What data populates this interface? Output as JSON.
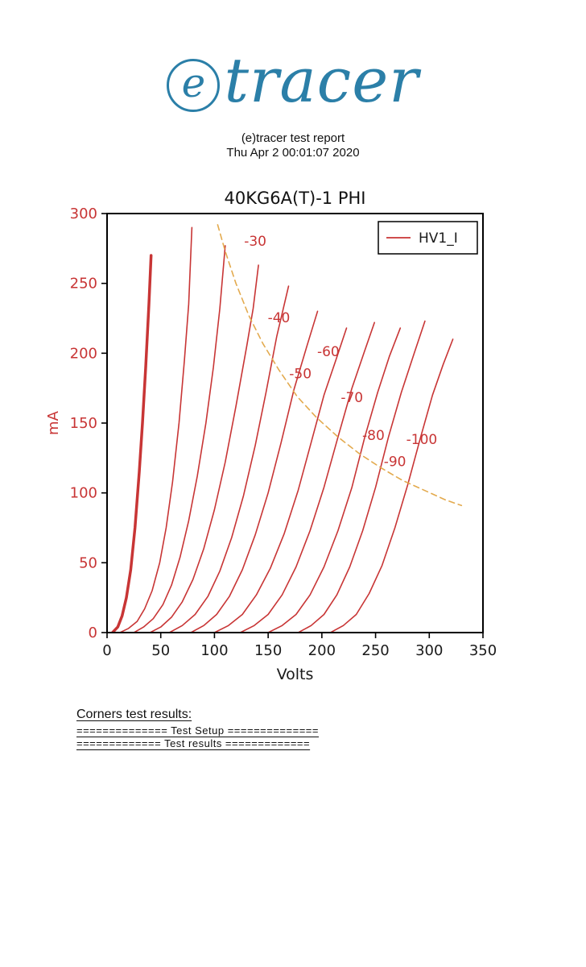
{
  "header": {
    "logo_e": "e",
    "logo_rest": "tracer",
    "line1": "(e)tracer test report",
    "line2": "Thu Apr 2 00:01:07 2020"
  },
  "footer": {
    "title": "Corners test results:",
    "setup_line": "============== Test Setup ==============",
    "results_line": "============= Test results ============="
  },
  "chart_data": {
    "type": "line",
    "title": "40KG6A(T)-1 PHI",
    "xlabel": "Volts",
    "ylabel": "mA",
    "xlim": [
      0,
      350
    ],
    "ylim": [
      0,
      300
    ],
    "xticks": [
      0,
      50,
      100,
      150,
      200,
      250,
      300,
      350
    ],
    "yticks": [
      0,
      50,
      100,
      150,
      200,
      250,
      300
    ],
    "grid": false,
    "legend": {
      "label": "HV1_I",
      "position": "upper right"
    },
    "colors": {
      "curve": "#c83535",
      "dashed": "#e3aa4e",
      "axis_red": "#c83535",
      "axis_black": "#1a1a1a"
    },
    "series": [
      {
        "name": "hv1-vg0",
        "grid_v": 0,
        "width": 3.5,
        "color": "#c83535",
        "points": [
          [
            5,
            0
          ],
          [
            10,
            4
          ],
          [
            14,
            12
          ],
          [
            18,
            25
          ],
          [
            22,
            45
          ],
          [
            26,
            75
          ],
          [
            30,
            115
          ],
          [
            33,
            150
          ],
          [
            36,
            190
          ],
          [
            39,
            235
          ],
          [
            41,
            270
          ]
        ]
      },
      {
        "name": "hv1-vg-10",
        "grid_v": -10,
        "width": 1.6,
        "color": "#c83535",
        "points": [
          [
            12,
            0
          ],
          [
            20,
            3
          ],
          [
            28,
            8
          ],
          [
            35,
            17
          ],
          [
            42,
            30
          ],
          [
            49,
            50
          ],
          [
            55,
            75
          ],
          [
            61,
            108
          ],
          [
            67,
            150
          ],
          [
            72,
            195
          ],
          [
            76,
            235
          ],
          [
            79,
            290
          ]
        ]
      },
      {
        "name": "hv1-vg-20",
        "grid_v": -20,
        "width": 1.6,
        "color": "#c83535",
        "points": [
          [
            25,
            0
          ],
          [
            34,
            4
          ],
          [
            43,
            10
          ],
          [
            52,
            20
          ],
          [
            60,
            34
          ],
          [
            68,
            54
          ],
          [
            76,
            80
          ],
          [
            84,
            112
          ],
          [
            92,
            150
          ],
          [
            99,
            190
          ],
          [
            105,
            232
          ],
          [
            110,
            277
          ]
        ]
      },
      {
        "name": "hv1-vg-30",
        "grid_v": -30,
        "width": 1.6,
        "color": "#c83535",
        "points": [
          [
            40,
            0
          ],
          [
            50,
            4
          ],
          [
            60,
            11
          ],
          [
            70,
            22
          ],
          [
            80,
            38
          ],
          [
            90,
            60
          ],
          [
            100,
            88
          ],
          [
            110,
            122
          ],
          [
            120,
            162
          ],
          [
            130,
            205
          ],
          [
            136,
            232
          ],
          [
            141,
            263
          ]
        ]
      },
      {
        "name": "hv1-vg-40",
        "grid_v": -40,
        "width": 1.6,
        "color": "#c83535",
        "points": [
          [
            58,
            0
          ],
          [
            70,
            5
          ],
          [
            82,
            13
          ],
          [
            94,
            26
          ],
          [
            105,
            44
          ],
          [
            116,
            68
          ],
          [
            127,
            98
          ],
          [
            138,
            134
          ],
          [
            148,
            172
          ],
          [
            158,
            212
          ],
          [
            169,
            248
          ]
        ]
      },
      {
        "name": "hv1-vg-50",
        "grid_v": -50,
        "width": 1.6,
        "color": "#c83535",
        "points": [
          [
            78,
            0
          ],
          [
            90,
            5
          ],
          [
            102,
            13
          ],
          [
            114,
            26
          ],
          [
            126,
            45
          ],
          [
            138,
            70
          ],
          [
            150,
            100
          ],
          [
            162,
            136
          ],
          [
            174,
            174
          ],
          [
            186,
            205
          ],
          [
            196,
            230
          ]
        ]
      },
      {
        "name": "hv1-vg-60",
        "grid_v": -60,
        "width": 1.6,
        "color": "#c83535",
        "points": [
          [
            100,
            0
          ],
          [
            113,
            5
          ],
          [
            126,
            13
          ],
          [
            139,
            27
          ],
          [
            152,
            46
          ],
          [
            165,
            71
          ],
          [
            178,
            102
          ],
          [
            190,
            136
          ],
          [
            202,
            170
          ],
          [
            213,
            195
          ],
          [
            223,
            218
          ]
        ]
      },
      {
        "name": "hv1-vg-70",
        "grid_v": -70,
        "width": 1.6,
        "color": "#c83535",
        "points": [
          [
            124,
            0
          ],
          [
            137,
            5
          ],
          [
            150,
            13
          ],
          [
            163,
            27
          ],
          [
            176,
            47
          ],
          [
            189,
            73
          ],
          [
            202,
            104
          ],
          [
            215,
            140
          ],
          [
            228,
            175
          ],
          [
            240,
            202
          ],
          [
            249,
            222
          ]
        ]
      },
      {
        "name": "hv1-vg-80",
        "grid_v": -80,
        "width": 1.6,
        "color": "#c83535",
        "points": [
          [
            150,
            0
          ],
          [
            163,
            5
          ],
          [
            176,
            13
          ],
          [
            189,
            27
          ],
          [
            202,
            47
          ],
          [
            215,
            73
          ],
          [
            228,
            104
          ],
          [
            240,
            140
          ],
          [
            252,
            172
          ],
          [
            263,
            198
          ],
          [
            273,
            218
          ]
        ]
      },
      {
        "name": "hv1-vg-90",
        "grid_v": -90,
        "width": 1.6,
        "color": "#c83535",
        "points": [
          [
            178,
            0
          ],
          [
            190,
            5
          ],
          [
            202,
            13
          ],
          [
            214,
            27
          ],
          [
            226,
            47
          ],
          [
            238,
            73
          ],
          [
            250,
            104
          ],
          [
            262,
            140
          ],
          [
            274,
            172
          ],
          [
            286,
            200
          ],
          [
            296,
            223
          ]
        ]
      },
      {
        "name": "hv1-vg-100",
        "grid_v": -100,
        "width": 1.6,
        "color": "#c83535",
        "points": [
          [
            208,
            0
          ],
          [
            220,
            5
          ],
          [
            232,
            13
          ],
          [
            244,
            28
          ],
          [
            256,
            48
          ],
          [
            268,
            75
          ],
          [
            280,
            106
          ],
          [
            292,
            140
          ],
          [
            303,
            170
          ],
          [
            313,
            192
          ],
          [
            322,
            210
          ]
        ]
      },
      {
        "name": "max-dissipation",
        "width": 1.6,
        "color": "#e3aa4e",
        "dash": "7 5",
        "points": [
          [
            103,
            292
          ],
          [
            110,
            273
          ],
          [
            120,
            250
          ],
          [
            132,
            227
          ],
          [
            145,
            207
          ],
          [
            160,
            188
          ],
          [
            177,
            169
          ],
          [
            195,
            154
          ],
          [
            215,
            140
          ],
          [
            235,
            128
          ],
          [
            255,
            118
          ],
          [
            275,
            109
          ],
          [
            295,
            102
          ],
          [
            315,
            95
          ],
          [
            330,
            91
          ]
        ]
      }
    ],
    "curve_labels": [
      {
        "text": "-30",
        "v": 138,
        "ma": 277
      },
      {
        "text": "-40",
        "v": 160,
        "ma": 222
      },
      {
        "text": "-50",
        "v": 180,
        "ma": 182
      },
      {
        "text": "-60",
        "v": 206,
        "ma": 198
      },
      {
        "text": "-70",
        "v": 228,
        "ma": 165
      },
      {
        "text": "-80",
        "v": 248,
        "ma": 138
      },
      {
        "text": "-90",
        "v": 268,
        "ma": 119
      },
      {
        "text": "-100",
        "v": 293,
        "ma": 135
      }
    ]
  }
}
